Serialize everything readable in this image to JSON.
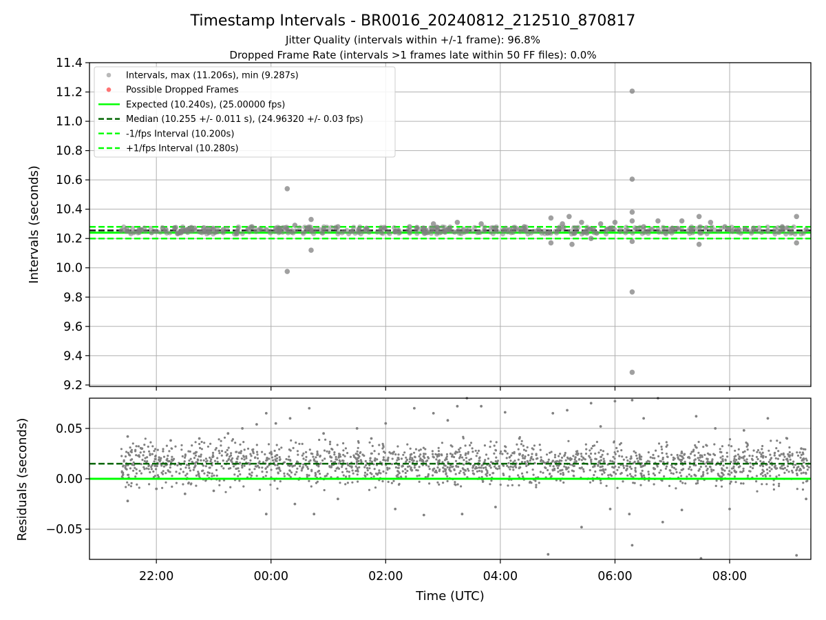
{
  "colors": {
    "points": "#808080",
    "dropped": "#ff0000",
    "expected": "#00ff00",
    "median": "#006400",
    "band": "#00ff00",
    "grid": "#b0b0b0"
  },
  "chart_data": [
    {
      "type": "scatter",
      "title": "Timestamp Intervals - BR0016_20240812_212510_870817",
      "subtitles": [
        "Jitter Quality (intervals within +/-1 frame): 96.8%",
        "Dropped Frame Rate (intervals >1 frames late within 50 FF files): 0.0%"
      ],
      "xlabel": "",
      "ylabel": "Intervals (seconds)",
      "xlim": [
        "20:50",
        "09:25"
      ],
      "ylim": [
        9.19,
        11.4
      ],
      "yticks": [
        "9.2",
        "9.4",
        "9.6",
        "9.8",
        "10.0",
        "10.2",
        "10.4",
        "10.6",
        "10.8",
        "11.0",
        "11.2",
        "11.4"
      ],
      "grid": true,
      "legend_position": "upper-left",
      "legend": [
        {
          "label": "Intervals, max (11.206s), min (9.287s)",
          "marker": "dot",
          "color": "#808080"
        },
        {
          "label": "Possible Dropped Frames",
          "marker": "dot",
          "color": "#ff0000"
        },
        {
          "label": "Expected (10.240s), (25.00000 fps)",
          "marker": "solid",
          "color": "#00ff00"
        },
        {
          "label": "Median (10.255 +/- 0.011 s), (24.96320 +/- 0.03 fps)",
          "marker": "dashed",
          "color": "#006400"
        },
        {
          "label": "-1/fps Interval (10.200s)",
          "marker": "dashed",
          "color": "#00ff00"
        },
        {
          "label": "+1/fps Interval (10.280s)",
          "marker": "dashed",
          "color": "#00ff00"
        }
      ],
      "reference_lines": {
        "expected": 10.24,
        "median": 10.255,
        "minus_one_frame": 10.2,
        "plus_one_frame": 10.28
      },
      "series": [
        {
          "label": "Intervals",
          "points": [
            [
              "21:30",
              10.25
            ],
            [
              "21:42",
              10.26
            ],
            [
              "21:55",
              10.24
            ],
            [
              "22:10",
              10.26
            ],
            [
              "22:25",
              10.25
            ],
            [
              "22:40",
              10.27
            ],
            [
              "22:55",
              10.24
            ],
            [
              "23:10",
              10.26
            ],
            [
              "23:25",
              10.25
            ],
            [
              "23:40",
              10.28
            ],
            [
              "23:55",
              10.26
            ],
            [
              "00:05",
              10.27
            ],
            [
              "00:17",
              10.54
            ],
            [
              "00:17",
              9.975
            ],
            [
              "00:25",
              10.29
            ],
            [
              "00:38",
              10.27
            ],
            [
              "00:42",
              10.33
            ],
            [
              "00:42",
              10.12
            ],
            [
              "00:55",
              10.26
            ],
            [
              "01:10",
              10.28
            ],
            [
              "01:25",
              10.25
            ],
            [
              "01:40",
              10.27
            ],
            [
              "01:55",
              10.26
            ],
            [
              "02:10",
              10.25
            ],
            [
              "02:25",
              10.28
            ],
            [
              "02:40",
              10.27
            ],
            [
              "02:50",
              10.3
            ],
            [
              "03:05",
              10.26
            ],
            [
              "03:15",
              10.31
            ],
            [
              "03:25",
              10.25
            ],
            [
              "03:40",
              10.3
            ],
            [
              "03:55",
              10.27
            ],
            [
              "04:10",
              10.26
            ],
            [
              "04:25",
              10.28
            ],
            [
              "04:40",
              10.26
            ],
            [
              "04:53",
              10.34
            ],
            [
              "04:53",
              10.17
            ],
            [
              "05:05",
              10.3
            ],
            [
              "05:12",
              10.35
            ],
            [
              "05:15",
              10.16
            ],
            [
              "05:25",
              10.31
            ],
            [
              "05:35",
              10.2
            ],
            [
              "05:45",
              10.3
            ],
            [
              "05:55",
              10.27
            ],
            [
              "06:00",
              10.31
            ],
            [
              "06:18",
              11.206
            ],
            [
              "06:18",
              10.605
            ],
            [
              "06:18",
              10.38
            ],
            [
              "06:18",
              10.32
            ],
            [
              "06:18",
              10.18
            ],
            [
              "06:18",
              9.835
            ],
            [
              "06:18",
              9.287
            ],
            [
              "06:30",
              10.28
            ],
            [
              "06:45",
              10.32
            ],
            [
              "07:00",
              10.27
            ],
            [
              "07:10",
              10.32
            ],
            [
              "07:20",
              10.26
            ],
            [
              "07:28",
              10.35
            ],
            [
              "07:28",
              10.16
            ],
            [
              "07:40",
              10.31
            ],
            [
              "07:55",
              10.28
            ],
            [
              "08:10",
              10.26
            ],
            [
              "08:25",
              10.27
            ],
            [
              "08:40",
              10.25
            ],
            [
              "08:55",
              10.28
            ],
            [
              "09:10",
              10.35
            ],
            [
              "09:10",
              10.17
            ],
            [
              "09:20",
              10.26
            ]
          ]
        }
      ]
    },
    {
      "type": "scatter",
      "title": "",
      "xlabel": "Time (UTC)",
      "ylabel": "Residuals (seconds)",
      "xlim": [
        "20:50",
        "09:25"
      ],
      "xticks": [
        "22:00",
        "00:00",
        "02:00",
        "04:00",
        "06:00",
        "08:00"
      ],
      "ylim": [
        -0.08,
        0.08
      ],
      "yticks": [
        "−0.05",
        "0.00",
        "0.05"
      ],
      "grid": true,
      "reference_lines": {
        "zero": 0.0,
        "median": 0.015
      },
      "series": [
        {
          "label": "Residuals",
          "points": [
            [
              "21:30",
              0.042
            ],
            [
              "21:30",
              -0.022
            ],
            [
              "21:45",
              0.03
            ],
            [
              "22:00",
              -0.01
            ],
            [
              "22:15",
              0.038
            ],
            [
              "22:30",
              -0.015
            ],
            [
              "22:45",
              0.04
            ],
            [
              "23:00",
              -0.012
            ],
            [
              "23:15",
              0.045
            ],
            [
              "23:30",
              0.05
            ],
            [
              "23:45",
              0.054
            ],
            [
              "23:55",
              0.065
            ],
            [
              "23:55",
              -0.035
            ],
            [
              "00:05",
              0.055
            ],
            [
              "00:20",
              0.06
            ],
            [
              "00:25",
              -0.025
            ],
            [
              "00:40",
              0.07
            ],
            [
              "00:45",
              -0.035
            ],
            [
              "00:55",
              0.045
            ],
            [
              "01:10",
              -0.02
            ],
            [
              "01:30",
              0.05
            ],
            [
              "01:45",
              0.04
            ],
            [
              "02:00",
              0.055
            ],
            [
              "02:10",
              -0.03
            ],
            [
              "02:30",
              0.07
            ],
            [
              "02:40",
              -0.036
            ],
            [
              "02:50",
              0.065
            ],
            [
              "03:05",
              0.058
            ],
            [
              "03:15",
              0.072
            ],
            [
              "03:20",
              -0.035
            ],
            [
              "03:25",
              0.08
            ],
            [
              "03:40",
              0.072
            ],
            [
              "03:55",
              -0.028
            ],
            [
              "04:05",
              0.066
            ],
            [
              "04:20",
              0.04
            ],
            [
              "04:50",
              -0.075
            ],
            [
              "04:55",
              0.065
            ],
            [
              "05:10",
              0.068
            ],
            [
              "05:25",
              -0.048
            ],
            [
              "05:35",
              0.075
            ],
            [
              "05:45",
              0.052
            ],
            [
              "05:55",
              -0.03
            ],
            [
              "06:00",
              0.077
            ],
            [
              "06:15",
              -0.035
            ],
            [
              "06:18",
              0.078
            ],
            [
              "06:18",
              -0.066
            ],
            [
              "06:30",
              0.06
            ],
            [
              "06:45",
              0.08
            ],
            [
              "06:50",
              -0.043
            ],
            [
              "07:10",
              -0.031
            ],
            [
              "07:25",
              0.062
            ],
            [
              "07:30",
              -0.079
            ],
            [
              "07:45",
              0.05
            ],
            [
              "08:00",
              -0.03
            ],
            [
              "08:15",
              0.048
            ],
            [
              "08:40",
              0.06
            ],
            [
              "09:00",
              0.04
            ],
            [
              "09:10",
              -0.076
            ],
            [
              "09:15",
              0.03
            ],
            [
              "09:20",
              -0.02
            ]
          ]
        }
      ]
    }
  ]
}
